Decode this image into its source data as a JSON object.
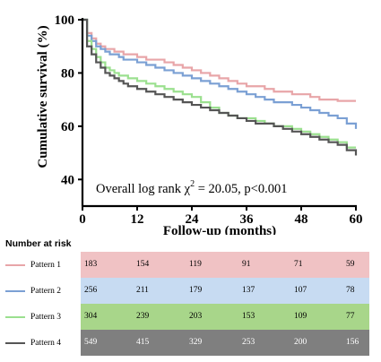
{
  "chart_data": {
    "type": "line",
    "subtype": "kaplan-meier step curves",
    "title": "",
    "xlabel": "Follow-up (months)",
    "ylabel": "Cumulative survival (%)",
    "xlim": [
      0,
      60
    ],
    "ylim": [
      30,
      100
    ],
    "xticks": [
      0,
      12,
      24,
      36,
      48,
      60
    ],
    "yticks": [
      40,
      60,
      80,
      100
    ],
    "grid": false,
    "annotation": {
      "prefix": "Overall log rank χ",
      "superscript": "2",
      "suffix": " = 20.05, p<0.001"
    },
    "series": [
      {
        "name": "Pattern 1",
        "color": "#e8a5a8",
        "x": [
          0,
          1,
          2,
          3,
          4,
          5,
          6,
          7,
          8,
          9,
          10,
          12,
          14,
          16,
          18,
          20,
          22,
          24,
          26,
          28,
          30,
          32,
          34,
          36,
          38,
          40,
          42,
          44,
          46,
          48,
          50,
          52,
          54,
          56,
          58,
          60
        ],
        "y": [
          100,
          95,
          93,
          91,
          90,
          89,
          89,
          88,
          88,
          87,
          87,
          86,
          85,
          85,
          84,
          83,
          82,
          81,
          80,
          79,
          78,
          77,
          76,
          75,
          75,
          74,
          73,
          73,
          72,
          72,
          71,
          70,
          70,
          69.5,
          69.5,
          69.5
        ]
      },
      {
        "name": "Pattern 2",
        "color": "#7ba0d4",
        "x": [
          0,
          1,
          2,
          3,
          4,
          5,
          6,
          7,
          8,
          9,
          10,
          12,
          14,
          16,
          18,
          20,
          22,
          24,
          26,
          28,
          30,
          32,
          34,
          36,
          38,
          40,
          42,
          44,
          46,
          48,
          50,
          52,
          54,
          56,
          58,
          60
        ],
        "y": [
          100,
          94,
          92,
          90,
          89,
          88,
          87,
          87,
          86,
          85,
          85,
          84,
          83,
          82,
          81,
          80,
          79,
          78,
          77,
          76,
          75,
          74,
          73,
          72,
          71,
          70,
          69,
          69,
          68,
          67,
          66,
          65,
          64,
          63,
          61,
          59
        ]
      },
      {
        "name": "Pattern 3",
        "color": "#9be08f",
        "x": [
          0,
          1,
          2,
          3,
          4,
          5,
          6,
          7,
          8,
          9,
          10,
          12,
          14,
          16,
          18,
          20,
          22,
          24,
          26,
          28,
          30,
          32,
          34,
          36,
          38,
          40,
          42,
          44,
          46,
          48,
          50,
          52,
          54,
          56,
          58,
          60
        ],
        "y": [
          100,
          92,
          89,
          86,
          84,
          82,
          81,
          80,
          79,
          79,
          78,
          77,
          76,
          75,
          74,
          73,
          72,
          71,
          69,
          67,
          65,
          64,
          63,
          63,
          62,
          61,
          60,
          60,
          59,
          58,
          57,
          56,
          55,
          54,
          52,
          52
        ]
      },
      {
        "name": "Pattern 4",
        "color": "#555555",
        "x": [
          0,
          1,
          2,
          3,
          4,
          5,
          6,
          7,
          8,
          9,
          10,
          12,
          14,
          16,
          18,
          20,
          22,
          24,
          26,
          28,
          30,
          32,
          34,
          36,
          38,
          40,
          42,
          44,
          46,
          48,
          50,
          52,
          54,
          56,
          58,
          60
        ],
        "y": [
          100,
          90,
          87,
          84,
          82,
          80,
          79,
          78,
          77,
          76,
          75,
          74,
          73,
          72,
          71,
          70,
          69,
          68,
          67,
          66,
          65,
          64,
          63,
          62,
          61,
          61,
          60,
          59,
          58,
          57,
          56,
          55,
          54,
          53,
          51,
          49
        ]
      }
    ],
    "number_at_risk": {
      "title": "Number at risk",
      "timepoints": [
        0,
        12,
        24,
        36,
        48,
        60
      ],
      "rows": [
        {
          "name": "Pattern 1",
          "line_color": "#e8a5a8",
          "band_color": "#f0c2c4",
          "text_color": "#000000",
          "values": [
            "183",
            "154",
            "119",
            "91",
            "71",
            "59"
          ]
        },
        {
          "name": "Pattern 2",
          "line_color": "#7ba0d4",
          "band_color": "#c7dbf2",
          "text_color": "#000000",
          "values": [
            "256",
            "211",
            "179",
            "137",
            "107",
            "78"
          ]
        },
        {
          "name": "Pattern 3",
          "line_color": "#9be08f",
          "band_color": "#a8d68a",
          "text_color": "#000000",
          "values": [
            "304",
            "239",
            "203",
            "153",
            "109",
            "77"
          ]
        },
        {
          "name": "Pattern 4",
          "line_color": "#555555",
          "band_color": "#7f7f7f",
          "text_color": "#ffffff",
          "values": [
            "549",
            "415",
            "329",
            "253",
            "200",
            "156"
          ]
        }
      ]
    }
  }
}
